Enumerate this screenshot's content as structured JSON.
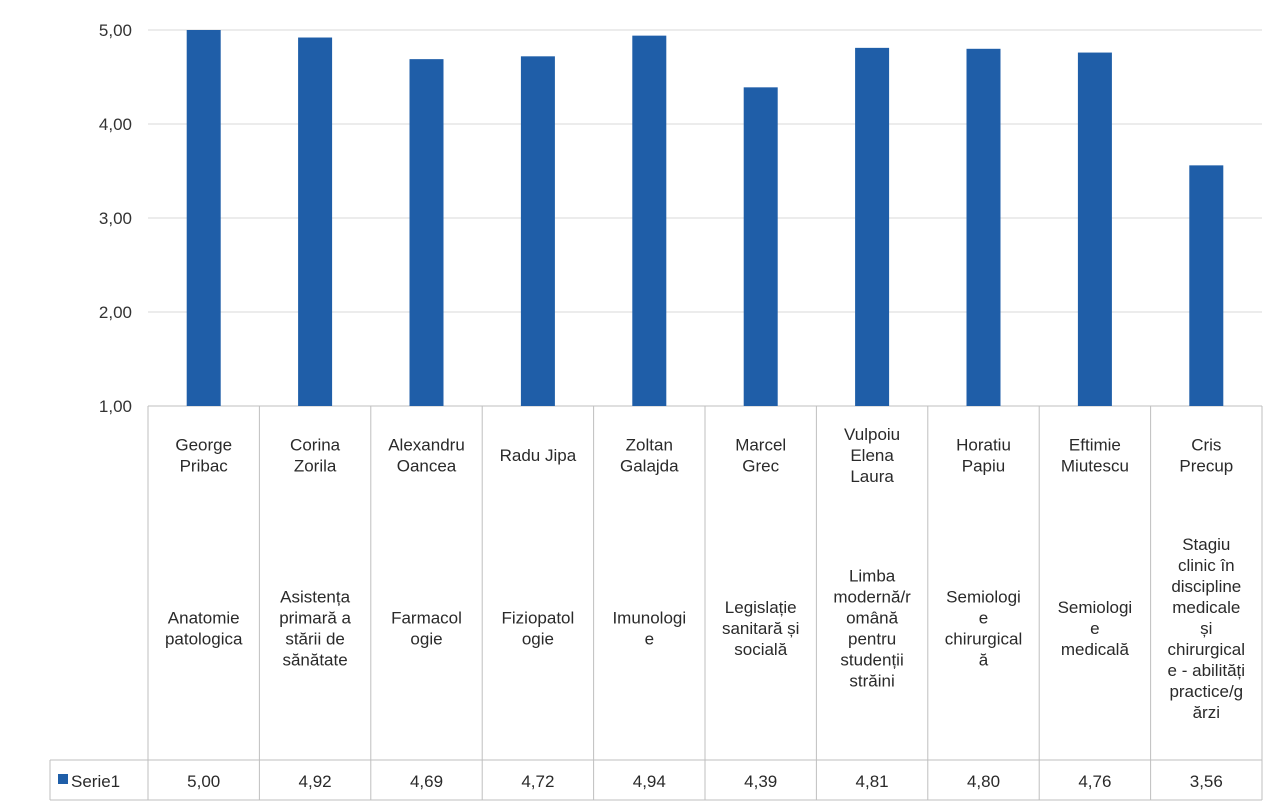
{
  "chart_data": {
    "type": "bar",
    "ylim": [
      1,
      5
    ],
    "y_ticks": [
      "5,00",
      "4,00",
      "3,00",
      "2,00",
      "1,00"
    ],
    "grid": true,
    "legend": "data-table-left",
    "series": [
      {
        "name": "Serie1",
        "color": "#1f5ea8",
        "values": [
          5.0,
          4.92,
          4.69,
          4.72,
          4.94,
          4.39,
          4.81,
          4.8,
          4.76,
          3.56
        ],
        "value_labels": [
          "5,00",
          "4,92",
          "4,69",
          "4,72",
          "4,94",
          "4,39",
          "4,81",
          "4,80",
          "4,76",
          "3,56"
        ]
      }
    ],
    "categories": [
      {
        "name": [
          "George",
          "Pribac"
        ],
        "subject": [
          "Anatomie",
          "patologica"
        ]
      },
      {
        "name": [
          "Corina",
          "Zorila"
        ],
        "subject": [
          "Asistența",
          "primară a",
          "stării de",
          "sănătate"
        ]
      },
      {
        "name": [
          "Alexandru",
          "Oancea"
        ],
        "subject": [
          "Farmacol",
          "ogie"
        ]
      },
      {
        "name": [
          "Radu Jipa"
        ],
        "subject": [
          "Fiziopatol",
          "ogie"
        ]
      },
      {
        "name": [
          "Zoltan",
          "Galajda"
        ],
        "subject": [
          "Imunologi",
          "e"
        ]
      },
      {
        "name": [
          "Marcel",
          "Grec"
        ],
        "subject": [
          "Legislație",
          "sanitară și",
          "socială"
        ]
      },
      {
        "name": [
          "Vulpoiu",
          "Elena",
          "Laura"
        ],
        "subject": [
          "Limba",
          "modernă/r",
          "omână",
          "pentru",
          "studenții",
          "străini"
        ]
      },
      {
        "name": [
          "Horatiu",
          "Papiu"
        ],
        "subject": [
          "Semiologi",
          "e",
          "chirurgical",
          "ă"
        ]
      },
      {
        "name": [
          "Eftimie",
          "Miutescu"
        ],
        "subject": [
          "Semiologi",
          "e",
          "medicală"
        ]
      },
      {
        "name": [
          "Cris",
          "Precup"
        ],
        "subject": [
          "Stagiu",
          "clinic în",
          "discipline",
          "medicale",
          "și",
          "chirurgical",
          "e - abilități",
          "practice/g",
          "ărzi"
        ]
      }
    ]
  }
}
